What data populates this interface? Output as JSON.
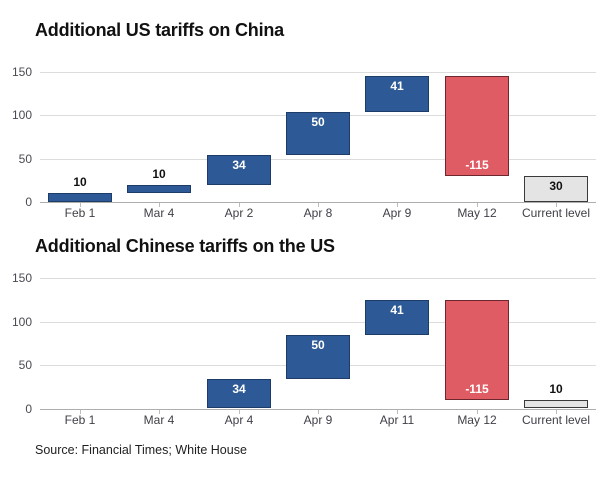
{
  "figure": {
    "source": "Source: Financial Times; White House"
  },
  "colors": {
    "increase": "#2d5a96",
    "increase_border": "#1d3c68",
    "decrease": "#e05c64",
    "decrease_border": "#6e272e",
    "total": "#e4e4e4",
    "total_border": "#3a3a3a",
    "grid": "#dcdcdc",
    "axis": "#aeaeae",
    "label_dark": "#111111",
    "label_light": "#ffffff"
  },
  "chart_data": [
    {
      "type": "bar",
      "subtype": "waterfall",
      "title": "Additional US tariffs on China",
      "categories": [
        "Feb 1",
        "Mar 4",
        "Apr 2",
        "Apr 8",
        "Apr 9",
        "May 12",
        "Current level"
      ],
      "bars": [
        {
          "category": "Feb 1",
          "value": 10,
          "start": 0,
          "end": 10,
          "kind": "increase",
          "label": "10",
          "label_pos": "above"
        },
        {
          "category": "Mar 4",
          "value": 10,
          "start": 10,
          "end": 20,
          "kind": "increase",
          "label": "10",
          "label_pos": "above"
        },
        {
          "category": "Apr 2",
          "value": 34,
          "start": 20,
          "end": 54,
          "kind": "increase",
          "label": "34",
          "label_pos": "inside-top"
        },
        {
          "category": "Apr 8",
          "value": 50,
          "start": 54,
          "end": 104,
          "kind": "increase",
          "label": "50",
          "label_pos": "inside-top"
        },
        {
          "category": "Apr 9",
          "value": 41,
          "start": 104,
          "end": 145,
          "kind": "increase",
          "label": "41",
          "label_pos": "inside-top"
        },
        {
          "category": "May 12",
          "value": -115,
          "start": 145,
          "end": 30,
          "kind": "decrease",
          "label": "-115",
          "label_pos": "inside-bottom"
        },
        {
          "category": "Current level",
          "value": 30,
          "start": 0,
          "end": 30,
          "kind": "total",
          "label": "30",
          "label_pos": "inside-top"
        }
      ],
      "yticks": [
        0,
        50,
        100,
        150
      ],
      "ylim": [
        0,
        150
      ],
      "grid": true,
      "legend": null
    },
    {
      "type": "bar",
      "subtype": "waterfall",
      "title": "Additional Chinese tariffs on the US",
      "categories": [
        "Feb 1",
        "Mar 4",
        "Apr 4",
        "Apr 9",
        "Apr 11",
        "May 12",
        "Current level"
      ],
      "bars": [
        {
          "category": "Apr 4",
          "value": 34,
          "start": 0,
          "end": 34,
          "kind": "increase",
          "label": "34",
          "label_pos": "inside-top"
        },
        {
          "category": "Apr 9",
          "value": 50,
          "start": 34,
          "end": 84,
          "kind": "increase",
          "label": "50",
          "label_pos": "inside-top"
        },
        {
          "category": "Apr 11",
          "value": 41,
          "start": 84,
          "end": 125,
          "kind": "increase",
          "label": "41",
          "label_pos": "inside-top"
        },
        {
          "category": "May 12",
          "value": -115,
          "start": 125,
          "end": 10,
          "kind": "decrease",
          "label": "-115",
          "label_pos": "inside-bottom"
        },
        {
          "category": "Current level",
          "value": 10,
          "start": 0,
          "end": 10,
          "kind": "total",
          "label": "10",
          "label_pos": "above"
        }
      ],
      "yticks": [
        0,
        50,
        100,
        150
      ],
      "ylim": [
        0,
        150
      ],
      "grid": true,
      "legend": null
    }
  ]
}
